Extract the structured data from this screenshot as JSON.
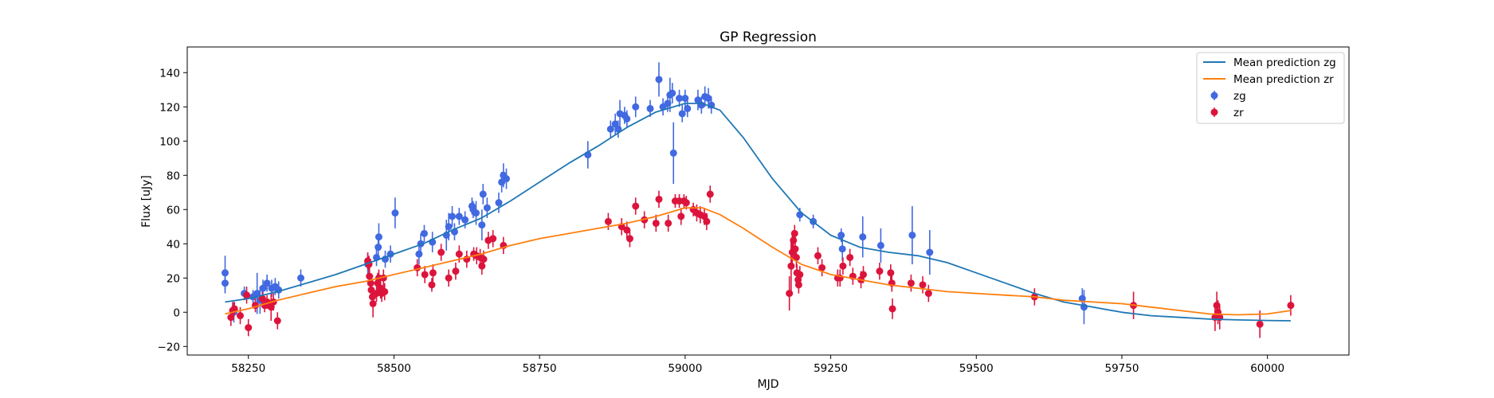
{
  "chart_data": {
    "type": "scatter",
    "title": "GP Regression",
    "xlabel": "MJD",
    "ylabel": "Flux [uJy]",
    "xlim": [
      58145,
      60140
    ],
    "ylim": [
      -25,
      155
    ],
    "xticks": [
      58250,
      58500,
      58750,
      59000,
      59250,
      59500,
      59750,
      60000
    ],
    "yticks": [
      -20,
      0,
      20,
      40,
      60,
      80,
      100,
      120,
      140
    ],
    "grid": false,
    "legend_position": "top-right",
    "legend": [
      "Mean prediction zg",
      "Mean prediction zr",
      "zg",
      "zr"
    ],
    "colors": {
      "zg_line": "#1f77b4",
      "zr_line": "#ff7f0e",
      "zg_points": "#4169e1",
      "zr_points": "#dc143c",
      "axes": "#000000"
    },
    "series": [
      {
        "name": "Mean prediction zg",
        "kind": "line",
        "x": [
          58210,
          58250,
          58300,
          58350,
          58400,
          58450,
          58500,
          58550,
          58600,
          58650,
          58700,
          58750,
          58800,
          58850,
          58900,
          58950,
          59000,
          59030,
          59060,
          59100,
          59150,
          59200,
          59250,
          59300,
          59350,
          59400,
          59450,
          59500,
          59550,
          59600,
          59650,
          59700,
          59750,
          59800,
          59850,
          59900,
          59950,
          60000,
          60040
        ],
        "y": [
          6,
          8,
          12,
          17,
          22,
          28,
          34,
          40,
          48,
          55,
          65,
          76,
          87,
          97,
          108,
          117,
          122,
          122,
          118,
          102,
          78,
          58,
          45,
          38,
          35,
          33,
          29,
          23,
          17,
          11,
          6,
          3,
          0,
          -2,
          -3,
          -4,
          -4.5,
          -4.8,
          -5
        ]
      },
      {
        "name": "Mean prediction zr",
        "kind": "line",
        "x": [
          58210,
          58250,
          58300,
          58350,
          58400,
          58450,
          58500,
          58550,
          58600,
          58650,
          58700,
          58750,
          58800,
          58850,
          58900,
          58950,
          59000,
          59030,
          59060,
          59100,
          59150,
          59200,
          59250,
          59300,
          59350,
          59400,
          59450,
          59500,
          59550,
          59600,
          59650,
          59700,
          59750,
          59800,
          59850,
          59900,
          59950,
          60000,
          60040
        ],
        "y": [
          -1,
          2,
          7,
          11,
          15,
          18,
          22,
          26,
          30,
          34,
          39,
          43,
          46,
          49,
          52,
          56,
          61,
          61,
          57,
          49,
          38,
          28,
          22,
          19,
          16,
          14,
          12,
          11,
          10,
          9,
          7,
          6,
          5,
          3,
          1,
          -1,
          -1.5,
          -1,
          1
        ]
      },
      {
        "name": "zg",
        "kind": "errorbar",
        "points": [
          [
            58210,
            23,
            10
          ],
          [
            58210,
            17,
            6
          ],
          [
            58225,
            0,
            6
          ],
          [
            58243,
            11,
            4
          ],
          [
            58258,
            9,
            4
          ],
          [
            58265,
            11,
            12
          ],
          [
            58270,
            7,
            8
          ],
          [
            58275,
            14,
            5
          ],
          [
            58282,
            17,
            5
          ],
          [
            58290,
            14,
            5
          ],
          [
            58296,
            15,
            5
          ],
          [
            58302,
            13,
            5
          ],
          [
            58340,
            20,
            5
          ],
          [
            58455,
            28,
            6
          ],
          [
            58470,
            32,
            5
          ],
          [
            58473,
            38,
            7
          ],
          [
            58474,
            44,
            8
          ],
          [
            58485,
            31,
            5
          ],
          [
            58494,
            34,
            5
          ],
          [
            58502,
            58,
            9
          ],
          [
            58543,
            34,
            6
          ],
          [
            58546,
            40,
            6
          ],
          [
            58552,
            46,
            5
          ],
          [
            58566,
            41,
            6
          ],
          [
            58590,
            45,
            9
          ],
          [
            58594,
            50,
            8
          ],
          [
            58600,
            56,
            6
          ],
          [
            58604,
            47,
            5
          ],
          [
            58612,
            56,
            5
          ],
          [
            58622,
            54,
            5
          ],
          [
            58634,
            62,
            5
          ],
          [
            58636,
            60,
            5
          ],
          [
            58641,
            58,
            7
          ],
          [
            58651,
            51,
            9
          ],
          [
            58653,
            69,
            6
          ],
          [
            58660,
            61,
            6
          ],
          [
            58680,
            64,
            6
          ],
          [
            58685,
            76,
            6
          ],
          [
            58688,
            80,
            7
          ],
          [
            58693,
            78,
            6
          ],
          [
            58833,
            92,
            8
          ],
          [
            58872,
            107,
            5
          ],
          [
            58880,
            110,
            6
          ],
          [
            58885,
            107,
            5
          ],
          [
            58888,
            116,
            8
          ],
          [
            58896,
            115,
            5
          ],
          [
            58900,
            113,
            5
          ],
          [
            58915,
            120,
            6
          ],
          [
            58940,
            119,
            5
          ],
          [
            58955,
            136,
            10
          ],
          [
            58962,
            120,
            5
          ],
          [
            58970,
            122,
            5
          ],
          [
            58974,
            127,
            10
          ],
          [
            58978,
            128,
            6
          ],
          [
            58980,
            93,
            18
          ],
          [
            58990,
            125,
            5
          ],
          [
            58995,
            116,
            5
          ],
          [
            59000,
            125,
            5
          ],
          [
            59004,
            119,
            5
          ],
          [
            59022,
            124,
            6
          ],
          [
            59028,
            121,
            5
          ],
          [
            59034,
            126,
            6
          ],
          [
            59040,
            125,
            6
          ],
          [
            59045,
            121,
            5
          ],
          [
            59197,
            57,
            4
          ],
          [
            59220,
            53,
            4
          ],
          [
            59268,
            45,
            4
          ],
          [
            59270,
            37,
            7
          ],
          [
            59305,
            44,
            12
          ],
          [
            59336,
            39,
            10
          ],
          [
            59390,
            45,
            17
          ],
          [
            59420,
            35,
            13
          ],
          [
            59682,
            8,
            6
          ],
          [
            59685,
            3,
            10
          ]
        ]
      },
      {
        "name": "zr",
        "kind": "errorbar",
        "points": [
          [
            58220,
            -3,
            5
          ],
          [
            58223,
            1,
            5
          ],
          [
            58226,
            2,
            4
          ],
          [
            58236,
            -2,
            5
          ],
          [
            58247,
            10,
            5
          ],
          [
            58250,
            -9,
            5
          ],
          [
            58262,
            4,
            4
          ],
          [
            58274,
            8,
            4
          ],
          [
            58278,
            4,
            4
          ],
          [
            58282,
            6,
            4
          ],
          [
            58289,
            3,
            8
          ],
          [
            58293,
            6,
            5
          ],
          [
            58300,
            -5,
            5
          ],
          [
            58455,
            30,
            5
          ],
          [
            58457,
            28,
            5
          ],
          [
            58458,
            21,
            5
          ],
          [
            58460,
            17,
            5
          ],
          [
            58461,
            13,
            5
          ],
          [
            58463,
            9,
            5
          ],
          [
            58464,
            5,
            8
          ],
          [
            58470,
            11,
            5
          ],
          [
            58472,
            17,
            6
          ],
          [
            58474,
            20,
            5
          ],
          [
            58477,
            14,
            6
          ],
          [
            58479,
            11,
            5
          ],
          [
            58482,
            20,
            5
          ],
          [
            58484,
            12,
            5
          ],
          [
            58540,
            26,
            5
          ],
          [
            58553,
            22,
            5
          ],
          [
            58565,
            16,
            4
          ],
          [
            58567,
            23,
            5
          ],
          [
            58581,
            35,
            5
          ],
          [
            58594,
            20,
            5
          ],
          [
            58606,
            24,
            5
          ],
          [
            58612,
            34,
            5
          ],
          [
            58625,
            31,
            5
          ],
          [
            58637,
            34,
            4
          ],
          [
            58642,
            33,
            5
          ],
          [
            58648,
            32,
            5
          ],
          [
            58651,
            27,
            5
          ],
          [
            58654,
            31,
            5
          ],
          [
            58662,
            42,
            5
          ],
          [
            58670,
            43,
            5
          ],
          [
            58688,
            39,
            5
          ],
          [
            58868,
            53,
            5
          ],
          [
            58891,
            50,
            5
          ],
          [
            58900,
            48,
            5
          ],
          [
            58905,
            43,
            5
          ],
          [
            58915,
            62,
            5
          ],
          [
            58930,
            54,
            5
          ],
          [
            58950,
            52,
            5
          ],
          [
            58955,
            66,
            5
          ],
          [
            58971,
            52,
            5
          ],
          [
            58983,
            65,
            4
          ],
          [
            58990,
            65,
            4
          ],
          [
            58993,
            56,
            5
          ],
          [
            58998,
            65,
            4
          ],
          [
            59002,
            64,
            4
          ],
          [
            59014,
            60,
            4
          ],
          [
            59020,
            58,
            5
          ],
          [
            59026,
            57,
            5
          ],
          [
            59033,
            56,
            5
          ],
          [
            59037,
            53,
            5
          ],
          [
            59043,
            69,
            5
          ],
          [
            59179,
            11,
            10
          ],
          [
            59182,
            27,
            16
          ],
          [
            59184,
            35,
            10
          ],
          [
            59186,
            42,
            6
          ],
          [
            59188,
            46,
            5
          ],
          [
            59189,
            37,
            7
          ],
          [
            59191,
            32,
            6
          ],
          [
            59192,
            23,
            5
          ],
          [
            59194,
            19,
            5
          ],
          [
            59195,
            16,
            5
          ],
          [
            59197,
            22,
            5
          ],
          [
            59228,
            33,
            5
          ],
          [
            59235,
            26,
            5
          ],
          [
            59262,
            20,
            5
          ],
          [
            59266,
            20,
            5
          ],
          [
            59271,
            27,
            5
          ],
          [
            59283,
            32,
            5
          ],
          [
            59288,
            21,
            5
          ],
          [
            59302,
            19,
            5
          ],
          [
            59306,
            22,
            5
          ],
          [
            59334,
            24,
            5
          ],
          [
            59353,
            23,
            5
          ],
          [
            59355,
            17,
            5
          ],
          [
            59356,
            2,
            6
          ],
          [
            59388,
            17,
            5
          ],
          [
            59408,
            16,
            5
          ],
          [
            59418,
            11,
            5
          ],
          [
            59600,
            9,
            5
          ],
          [
            59770,
            4,
            8
          ],
          [
            59910,
            -3,
            8
          ],
          [
            59913,
            4,
            8
          ],
          [
            59915,
            0,
            7
          ],
          [
            59918,
            -3,
            7
          ],
          [
            59987,
            -7,
            8
          ],
          [
            60040,
            4,
            6
          ]
        ]
      }
    ]
  }
}
